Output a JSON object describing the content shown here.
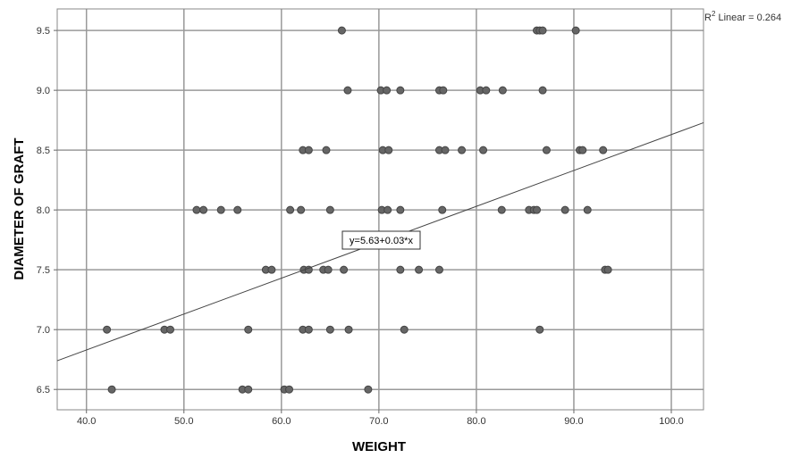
{
  "chart_data": {
    "type": "scatter",
    "xlabel": "WEIGHT",
    "ylabel": "DIAMETER OF GRAFT",
    "xlim": [
      37,
      103.3
    ],
    "ylim": [
      6.33,
      9.68
    ],
    "x_ticks": [
      40,
      50,
      60,
      70,
      80,
      90,
      100
    ],
    "x_tick_labels": [
      "40.0",
      "50.0",
      "60.0",
      "70.0",
      "80.0",
      "90.0",
      "100.0"
    ],
    "y_ticks": [
      6.5,
      7.0,
      7.5,
      8.0,
      8.5,
      9.0,
      9.5
    ],
    "y_tick_labels": [
      "6.5",
      "7.0",
      "7.5",
      "8.0",
      "8.5",
      "9.0",
      "9.5"
    ],
    "grid": true,
    "point_color": "#666666",
    "point_edge_color": "#444444",
    "points": [
      [
        66.2,
        9.5
      ],
      [
        86.2,
        9.5
      ],
      [
        86.5,
        9.5
      ],
      [
        86.8,
        9.5
      ],
      [
        90.2,
        9.5
      ],
      [
        66.8,
        9.0
      ],
      [
        70.2,
        9.0
      ],
      [
        70.8,
        9.0
      ],
      [
        72.2,
        9.0
      ],
      [
        76.2,
        9.0
      ],
      [
        76.6,
        9.0
      ],
      [
        80.4,
        9.0
      ],
      [
        81.0,
        9.0
      ],
      [
        82.7,
        9.0
      ],
      [
        86.8,
        9.0
      ],
      [
        62.2,
        8.5
      ],
      [
        62.8,
        8.5
      ],
      [
        64.6,
        8.5
      ],
      [
        70.4,
        8.5
      ],
      [
        71.0,
        8.5
      ],
      [
        76.2,
        8.5
      ],
      [
        76.8,
        8.5
      ],
      [
        78.5,
        8.5
      ],
      [
        80.7,
        8.5
      ],
      [
        87.2,
        8.5
      ],
      [
        90.6,
        8.5
      ],
      [
        90.9,
        8.5
      ],
      [
        93.0,
        8.5
      ],
      [
        51.3,
        8.0
      ],
      [
        52.0,
        8.0
      ],
      [
        53.8,
        8.0
      ],
      [
        55.5,
        8.0
      ],
      [
        60.9,
        8.0
      ],
      [
        62.0,
        8.0
      ],
      [
        65.0,
        8.0
      ],
      [
        70.3,
        8.0
      ],
      [
        70.9,
        8.0
      ],
      [
        72.2,
        8.0
      ],
      [
        76.5,
        8.0
      ],
      [
        82.6,
        8.0
      ],
      [
        85.4,
        8.0
      ],
      [
        85.9,
        8.0
      ],
      [
        86.2,
        8.0
      ],
      [
        89.1,
        8.0
      ],
      [
        91.4,
        8.0
      ],
      [
        58.4,
        7.5
      ],
      [
        59.0,
        7.5
      ],
      [
        62.3,
        7.5
      ],
      [
        62.8,
        7.5
      ],
      [
        64.3,
        7.5
      ],
      [
        64.8,
        7.5
      ],
      [
        66.4,
        7.5
      ],
      [
        72.2,
        7.5
      ],
      [
        74.1,
        7.5
      ],
      [
        76.2,
        7.5
      ],
      [
        93.2,
        7.5
      ],
      [
        93.5,
        7.5
      ],
      [
        42.1,
        7.0
      ],
      [
        48.0,
        7.0
      ],
      [
        48.6,
        7.0
      ],
      [
        56.6,
        7.0
      ],
      [
        62.2,
        7.0
      ],
      [
        62.8,
        7.0
      ],
      [
        65.0,
        7.0
      ],
      [
        66.9,
        7.0
      ],
      [
        72.6,
        7.0
      ],
      [
        86.5,
        7.0
      ],
      [
        42.6,
        6.5
      ],
      [
        56.0,
        6.5
      ],
      [
        56.6,
        6.5
      ],
      [
        60.3,
        6.5
      ],
      [
        60.8,
        6.5
      ],
      [
        68.9,
        6.5
      ]
    ],
    "fit_line": {
      "intercept": 5.63,
      "slope": 0.03,
      "x_range": [
        37,
        103.3
      ]
    },
    "fit_equation": "y=5.63+0.03*x",
    "r2_label": {
      "prefix": "R",
      "sup": "2",
      "suffix": " Linear = 0.264"
    }
  }
}
